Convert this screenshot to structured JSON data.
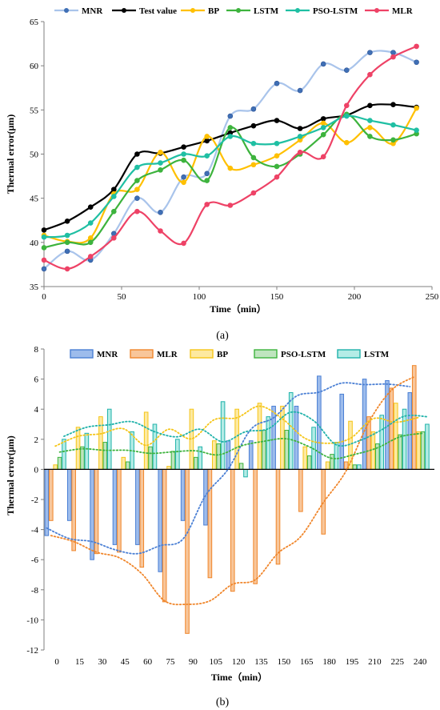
{
  "chart_data": [
    {
      "type": "line",
      "caption": "(a)",
      "xlabel": "Time（min）",
      "ylabel": "Thermal error(μm)",
      "xlim": [
        0,
        250
      ],
      "ylim": [
        35,
        65
      ],
      "xticks": [
        0,
        50,
        100,
        150,
        200,
        250
      ],
      "yticks": [
        35,
        40,
        45,
        50,
        55,
        60,
        65
      ],
      "legend_position": "top",
      "x": [
        0,
        15,
        30,
        45,
        60,
        75,
        90,
        105,
        120,
        135,
        150,
        165,
        180,
        195,
        210,
        225,
        240
      ],
      "series": [
        {
          "name": "MNR",
          "color": "#a9c4eb",
          "marker_color": "#3f6fb5",
          "values": [
            37,
            39,
            38,
            41,
            45,
            43.4,
            47.4,
            47.8,
            54.3,
            55.1,
            58,
            57.2,
            60.2,
            59.5,
            61.5,
            61.5,
            60.4
          ]
        },
        {
          "name": "Test value",
          "color": "#000000",
          "marker_color": "#000000",
          "values": [
            41.4,
            42.4,
            44,
            46,
            50,
            50.1,
            50.8,
            51.5,
            52.4,
            53.2,
            53.8,
            52.9,
            54,
            54.4,
            55.5,
            55.6,
            55.3
          ]
        },
        {
          "name": "BP",
          "color": "#ffc000",
          "marker_color": "#ffc000",
          "values": [
            40.8,
            40.1,
            40.5,
            45.5,
            46,
            50.2,
            46.8,
            52,
            48.4,
            48.8,
            49.8,
            51.6,
            53.5,
            51.3,
            53,
            51.2,
            55.2
          ]
        },
        {
          "name": "LSTM",
          "color": "#3db33d",
          "marker_color": "#3db33d",
          "values": [
            39.4,
            40,
            40,
            43.5,
            47,
            48.2,
            49.3,
            47,
            53,
            49.6,
            48.6,
            50,
            52.2,
            54.5,
            52,
            51.6,
            52.3
          ]
        },
        {
          "name": "PSO-LSTM",
          "color": "#1fbfa3",
          "marker_color": "#1fbfa3",
          "values": [
            40.6,
            40.8,
            42.2,
            45.2,
            48.5,
            49,
            50,
            49.8,
            52,
            51.2,
            51.2,
            52,
            53,
            54.3,
            53.8,
            53.3,
            52.7
          ]
        },
        {
          "name": "MLR",
          "color": "#ee4266",
          "marker_color": "#ee4266",
          "values": [
            38,
            37,
            38.4,
            40.5,
            43.5,
            41.3,
            39.9,
            44.3,
            44.2,
            45.6,
            47.4,
            50.2,
            49.7,
            55.5,
            59,
            61,
            62.2
          ]
        }
      ]
    },
    {
      "type": "bar",
      "caption": "(b)",
      "xlabel": "Time（min）",
      "ylabel": "Thermal error(μm)",
      "ylim": [
        -12,
        8
      ],
      "yticks": [
        -12,
        -10,
        -8,
        -6,
        -4,
        -2,
        0,
        2,
        4,
        6,
        8
      ],
      "categories": [
        "0",
        "15",
        "30",
        "45",
        "60",
        "75",
        "90",
        "105",
        "120",
        "135",
        "150",
        "165",
        "180",
        "195",
        "210",
        "225",
        "240"
      ],
      "legend_position": "top",
      "trendlines": "dotted",
      "series": [
        {
          "name": "MNR",
          "color": "#4a7fd4",
          "fill": "#9dbcec",
          "values": [
            -4.4,
            -3.4,
            -6,
            -5,
            -5,
            -6.8,
            -3.4,
            -3.7,
            1.9,
            1.9,
            4.2,
            4.2,
            6.2,
            5,
            6,
            5.9,
            5.1
          ]
        },
        {
          "name": "MLR",
          "color": "#f0862b",
          "fill": "#f8c69a",
          "values": [
            -3.4,
            -5.4,
            -5.6,
            -5.5,
            -6.5,
            -8.8,
            -10.9,
            -7.2,
            -8.1,
            -7.6,
            -6.3,
            -2.8,
            -4.3,
            0.5,
            3.5,
            5.4,
            6.9
          ]
        },
        {
          "name": "BP",
          "color": "#f5c518",
          "fill": "#fde9a0",
          "values": [
            0.3,
            2.8,
            3.5,
            0.8,
            3.8,
            0.2,
            4,
            1.9,
            4,
            4.4,
            4.2,
            1.5,
            0.5,
            3.2,
            2.5,
            4.4,
            2.5
          ]
        },
        {
          "name": "PSO-LSTM",
          "color": "#3db33d",
          "fill": "#bfe5bf",
          "values": [
            0.8,
            1.5,
            1.8,
            0.5,
            1.5,
            1.2,
            0.8,
            1.7,
            0.4,
            2.6,
            2.6,
            0.9,
            1,
            0.3,
            1.7,
            2.3,
            2.5
          ]
        },
        {
          "name": "LSTM",
          "color": "#20b2aa",
          "fill": "#b4ece6",
          "values": [
            2,
            2.4,
            4,
            2.5,
            3,
            2,
            1.5,
            4.5,
            -0.5,
            3.5,
            5.1,
            2.8,
            1.8,
            0.3,
            3.6,
            4,
            3
          ]
        }
      ]
    }
  ]
}
